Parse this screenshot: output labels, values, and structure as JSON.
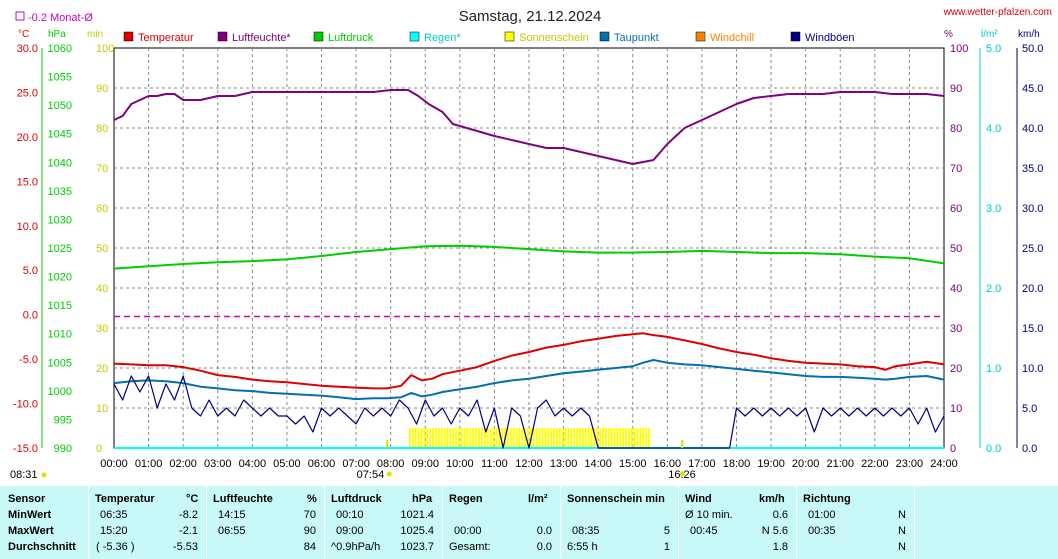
{
  "chart_data": {
    "type": "line",
    "title": "Samstag, 21.12.2024",
    "source": "www.wetter-pfalzen.com",
    "month_avg_label": "-0.2 Monat-Ø",
    "month_avg_value": -0.2,
    "x_labels": [
      "00:00",
      "01:00",
      "02:00",
      "03:00",
      "04:00",
      "05:00",
      "06:00",
      "07:00",
      "08:00",
      "09:00",
      "10:00",
      "11:00",
      "12:00",
      "13:00",
      "14:00",
      "15:00",
      "16:00",
      "17:00",
      "18:00",
      "19:00",
      "20:00",
      "21:00",
      "22:00",
      "23:00",
      "24:00"
    ],
    "xlim": [
      0,
      24
    ],
    "grid": true,
    "sunrise": "07:54",
    "sunset": "16:26",
    "sunrise_h": 7.9,
    "sunset_h": 16.43,
    "daylight": "08:31",
    "axes": {
      "temp": {
        "unit": "°C",
        "ylim": [
          -15,
          30
        ],
        "ticks": [
          "30.0",
          "25.0",
          "20.0",
          "15.0",
          "10.0",
          "5.0",
          "0.0",
          "-5.0",
          "-10.0",
          "-15.0"
        ],
        "color": "#dd0000"
      },
      "pressure": {
        "unit": "hPa",
        "ylim": [
          990,
          1060
        ],
        "ticks": [
          "1060",
          "1055",
          "1050",
          "1045",
          "1040",
          "1035",
          "1030",
          "1025",
          "1020",
          "1015",
          "1010",
          "1005",
          "1000",
          "995",
          "990"
        ],
        "color": "#00cc00"
      },
      "sun": {
        "unit": "min",
        "ylim": [
          0,
          100
        ],
        "ticks": [
          "100",
          "90",
          "80",
          "70",
          "60",
          "50",
          "40",
          "30",
          "20",
          "10",
          "0"
        ],
        "color": "#d8d800"
      },
      "humidity": {
        "unit": "%",
        "ylim": [
          0,
          100
        ],
        "ticks": [
          "100",
          "90",
          "80",
          "70",
          "60",
          "50",
          "40",
          "30",
          "20",
          "10",
          "0"
        ],
        "color": "#800080"
      },
      "rain": {
        "unit": "l/m²",
        "ylim": [
          0,
          5
        ],
        "ticks": [
          "5.0",
          "4.0",
          "3.0",
          "2.0",
          "1.0",
          "0.0"
        ],
        "color": "#00cccc"
      },
      "wind": {
        "unit": "km/h",
        "ylim": [
          0,
          50
        ],
        "ticks": [
          "50.0",
          "45.0",
          "40.0",
          "35.0",
          "30.0",
          "25.0",
          "20.0",
          "15.0",
          "10.0",
          "5.0",
          "0.0"
        ],
        "color": "#000080"
      }
    },
    "legend": [
      {
        "name": "Temperatur",
        "color": "#dd0000"
      },
      {
        "name": "Luftfeuchte*",
        "color": "#800080"
      },
      {
        "name": "Luftdruck",
        "color": "#00cc00"
      },
      {
        "name": "Regen*",
        "color": "#00ffff"
      },
      {
        "name": "Sonnenschein",
        "color": "#ffff00"
      },
      {
        "name": "Taupunkt",
        "color": "#0070b0"
      },
      {
        "name": "Windchill",
        "color": "#ff8000"
      },
      {
        "name": "Windböen",
        "color": "#000080"
      }
    ],
    "series": [
      {
        "name": "Temperatur",
        "axis": "temp",
        "color": "#dd0000",
        "x": [
          0,
          0.5,
          1,
          1.5,
          2,
          2.5,
          3,
          3.5,
          4,
          4.5,
          5,
          5.5,
          6,
          6.5,
          7,
          7.5,
          7.9,
          8.3,
          8.6,
          8.9,
          9.2,
          9.5,
          10,
          10.5,
          11,
          11.5,
          12,
          12.5,
          13,
          13.5,
          14,
          14.5,
          15,
          15.3,
          15.6,
          16,
          16.5,
          17,
          17.5,
          18,
          18.5,
          19,
          19.5,
          20,
          20.5,
          21,
          21.5,
          22,
          22.3,
          22.6,
          23,
          23.5,
          24
        ],
        "y": [
          -5.5,
          -5.6,
          -5.7,
          -5.7,
          -5.9,
          -6.3,
          -6.8,
          -7.0,
          -7.3,
          -7.5,
          -7.6,
          -7.8,
          -8.0,
          -8.1,
          -8.2,
          -8.3,
          -8.3,
          -8.0,
          -6.8,
          -7.4,
          -7.2,
          -6.7,
          -6.3,
          -5.9,
          -5.2,
          -4.6,
          -4.2,
          -3.7,
          -3.4,
          -3.0,
          -2.7,
          -2.4,
          -2.2,
          -2.1,
          -2.3,
          -2.5,
          -2.9,
          -3.3,
          -3.8,
          -4.2,
          -4.5,
          -4.9,
          -5.2,
          -5.4,
          -5.5,
          -5.6,
          -5.8,
          -5.9,
          -6.2,
          -5.8,
          -5.6,
          -5.3,
          -5.6
        ]
      },
      {
        "name": "Taupunkt",
        "axis": "temp",
        "color": "#0070b0",
        "x": [
          0,
          0.5,
          1,
          1.5,
          2,
          2.5,
          3,
          3.5,
          4,
          4.5,
          5,
          5.5,
          6,
          6.5,
          7,
          7.5,
          7.9,
          8.3,
          8.6,
          8.9,
          9.2,
          9.5,
          10,
          10.5,
          11,
          11.5,
          12,
          12.5,
          13,
          13.5,
          14,
          14.5,
          15,
          15.3,
          15.6,
          16,
          16.5,
          17,
          17.5,
          18,
          18.5,
          19,
          19.5,
          20,
          20.5,
          21,
          21.5,
          22,
          22.3,
          22.6,
          23,
          23.5,
          24
        ],
        "y": [
          -7.7,
          -7.5,
          -7.4,
          -7.5,
          -7.7,
          -8.1,
          -8.3,
          -8.5,
          -8.6,
          -8.8,
          -8.9,
          -9.0,
          -9.1,
          -9.3,
          -9.5,
          -9.4,
          -9.4,
          -9.3,
          -8.8,
          -9.2,
          -9.0,
          -8.7,
          -8.4,
          -8.1,
          -7.7,
          -7.4,
          -7.2,
          -6.9,
          -6.6,
          -6.4,
          -6.2,
          -6.0,
          -5.8,
          -5.4,
          -5.1,
          -5.4,
          -5.6,
          -5.7,
          -5.9,
          -6.1,
          -6.3,
          -6.5,
          -6.7,
          -6.9,
          -7.0,
          -7.0,
          -7.1,
          -7.2,
          -7.3,
          -7.2,
          -7.0,
          -6.9,
          -7.3
        ]
      },
      {
        "name": "Luftfeuchte*",
        "axis": "humidity",
        "color": "#800080",
        "x": [
          0,
          0.25,
          0.5,
          0.75,
          1,
          1.25,
          1.5,
          1.75,
          2,
          2.5,
          3,
          3.5,
          4,
          4.5,
          5,
          5.5,
          6,
          6.5,
          7,
          7.5,
          8,
          8.5,
          8.8,
          9.1,
          9.5,
          9.8,
          10.2,
          10.6,
          11,
          11.5,
          12,
          12.5,
          13,
          13.5,
          14,
          14.5,
          15,
          15.3,
          15.6,
          16,
          16.5,
          17,
          17.5,
          18,
          18.5,
          19,
          19.5,
          20,
          20.5,
          21,
          21.5,
          22,
          22.5,
          23,
          23.5,
          24
        ],
        "y": [
          82,
          83,
          86,
          87,
          88,
          88,
          88.5,
          88.5,
          87,
          87,
          88,
          88,
          89,
          89,
          89,
          89,
          89,
          89,
          89,
          89,
          89.5,
          89.5,
          88,
          86,
          84,
          81,
          80,
          79,
          78,
          77,
          76,
          75,
          75,
          74,
          73,
          72,
          71,
          71.5,
          72,
          76,
          80,
          82,
          84,
          86,
          87.5,
          88,
          88.5,
          88.5,
          88.5,
          89,
          89,
          89,
          88.5,
          88.5,
          88.5,
          88
        ]
      },
      {
        "name": "Luftdruck",
        "axis": "pressure",
        "color": "#00cc00",
        "x": [
          0,
          1,
          2,
          3,
          4,
          5,
          6,
          7,
          8,
          9,
          10,
          11,
          12,
          13,
          14,
          15,
          16,
          17,
          18,
          19,
          20,
          21,
          22,
          23,
          24
        ],
        "y": [
          1021.4,
          1021.8,
          1022.2,
          1022.5,
          1022.7,
          1023.0,
          1023.6,
          1024.3,
          1024.8,
          1025.3,
          1025.4,
          1025.2,
          1024.8,
          1024.4,
          1024.2,
          1024.2,
          1024.3,
          1024.5,
          1024.3,
          1024.1,
          1024.1,
          1023.9,
          1023.5,
          1023.2,
          1022.3
        ]
      },
      {
        "name": "Regen*",
        "axis": "rain",
        "color": "#00ffff",
        "x": [
          0,
          24
        ],
        "y": [
          0,
          0
        ]
      },
      {
        "name": "Windböen",
        "axis": "wind",
        "color": "#000080",
        "x": [
          0,
          0.25,
          0.5,
          0.75,
          1,
          1.25,
          1.5,
          1.75,
          2,
          2.25,
          2.5,
          2.75,
          3,
          3.25,
          3.5,
          3.75,
          4,
          4.25,
          4.5,
          4.75,
          5,
          5.25,
          5.5,
          5.75,
          6,
          6.25,
          6.5,
          6.75,
          7,
          7.25,
          7.5,
          7.75,
          8,
          8.25,
          8.5,
          8.75,
          9,
          9.25,
          9.5,
          9.75,
          10,
          10.25,
          10.5,
          10.75,
          11,
          11.25,
          11.5,
          11.75,
          12,
          12.25,
          12.5,
          12.75,
          13,
          13.25,
          13.5,
          13.75,
          14,
          17.8,
          18,
          18.25,
          18.5,
          18.75,
          19,
          19.25,
          19.5,
          19.75,
          20,
          20.25,
          20.5,
          20.75,
          21,
          21.25,
          21.5,
          21.75,
          22,
          22.25,
          22.5,
          22.75,
          23,
          23.25,
          23.5,
          23.75,
          24
        ],
        "y": [
          8,
          6,
          9,
          7,
          9,
          5,
          8,
          6,
          9,
          5,
          4,
          6,
          4,
          5,
          4,
          6,
          5,
          4,
          5,
          4,
          4,
          3,
          4,
          2,
          5,
          4,
          5,
          4,
          3,
          5,
          4,
          5,
          4,
          6,
          5,
          3,
          6,
          4,
          5,
          3,
          5,
          4,
          6,
          2,
          5,
          0,
          5,
          4,
          0,
          5,
          6,
          4,
          5,
          4,
          5,
          4,
          0,
          0,
          5,
          4,
          5,
          4,
          5,
          4,
          5,
          4,
          5,
          2,
          5,
          4,
          5,
          4,
          5,
          4,
          5,
          4,
          5,
          4,
          5,
          3,
          5,
          2,
          4
        ]
      },
      {
        "name": "Sonnenschein",
        "axis": "sun",
        "color": "#ffff00",
        "x": [
          0,
          8.5,
          8.5,
          15.5,
          15.5,
          24
        ],
        "y": [
          0,
          0,
          5,
          5,
          0,
          0
        ]
      }
    ]
  },
  "stats": {
    "headers": {
      "sensor": "Sensor",
      "temperatur": "Temperatur",
      "temp_unit": "°C",
      "luftfeuchte": "Luftfeuchte",
      "hum_unit": "%",
      "luftdruck": "Luftdruck",
      "pres_unit": "hPa",
      "regen": "Regen",
      "rain_unit": "l/m²",
      "sonne": "Sonnenschein min",
      "wind": "Wind",
      "wind_unit": "km/h",
      "richtung": "Richtung"
    },
    "min": {
      "label": "MinWert",
      "temp_time": "06:35",
      "temp_val": "-8.2",
      "hum_time": "14:15",
      "hum_val": "70",
      "pres_time": "00:10",
      "pres_val": "1021.4",
      "rain_time": "",
      "rain_val": "",
      "sun_time": "",
      "sun_val": "",
      "wind_time": "Ø 10 min.",
      "wind_val": "0.6",
      "dir_time": "01:00",
      "dir_val": "N"
    },
    "max": {
      "label": "MaxWert",
      "temp_time": "15:20",
      "temp_val": "-2.1",
      "hum_time": "06:55",
      "hum_val": "90",
      "pres_time": "09:00",
      "pres_val": "1025.4",
      "rain_time": "00:00",
      "rain_val": "0.0",
      "sun_time": "08:35",
      "sun_val": "5",
      "wind_time": "00:45",
      "wind_val": "N 5.6",
      "dir_time": "00:35",
      "dir_val": "N"
    },
    "avg": {
      "label": "Durchschnitt",
      "temp_time": "( -5.36 )",
      "temp_val": "-5.53",
      "hum_time": "",
      "hum_val": "84",
      "pres_time": "^0.9hPa/h",
      "pres_val": "1023.7",
      "rain_time": "Gesamt:",
      "rain_val": "0.0",
      "sun_time": "6:55 h",
      "sun_val": "1",
      "wind_time": "",
      "wind_val": "1.8",
      "dir_time": "",
      "dir_val": "N"
    }
  }
}
